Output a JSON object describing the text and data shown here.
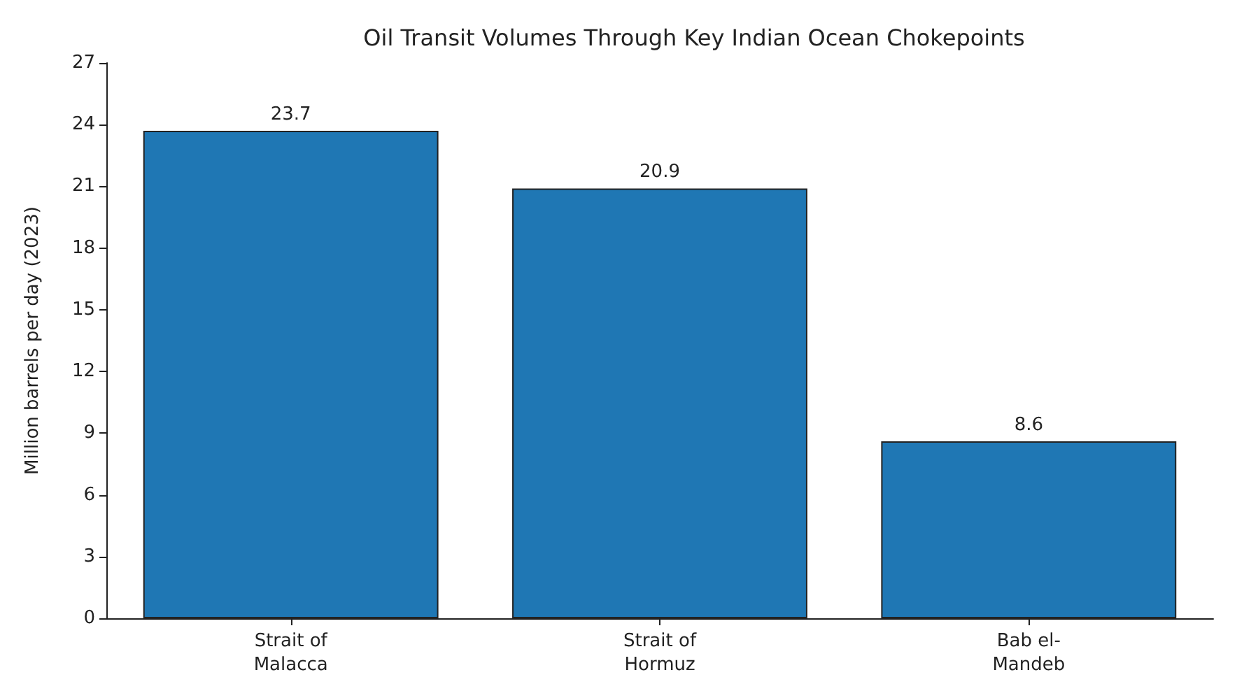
{
  "chart_data": {
    "type": "bar",
    "title": "Oil Transit Volumes Through Key Indian Ocean Chokepoints",
    "ylabel": "Million barrels per day (2023)",
    "categories": [
      "Strait of Malacca",
      "Strait of Hormuz",
      "Bab el-Mandeb"
    ],
    "values": [
      23.7,
      20.9,
      8.6
    ],
    "color": "#1f77b4",
    "ylim": [
      0,
      27
    ],
    "yticks": [
      0,
      3,
      6,
      9,
      12,
      15,
      18,
      21,
      24,
      27
    ],
    "grid": false,
    "data_labels": true
  }
}
